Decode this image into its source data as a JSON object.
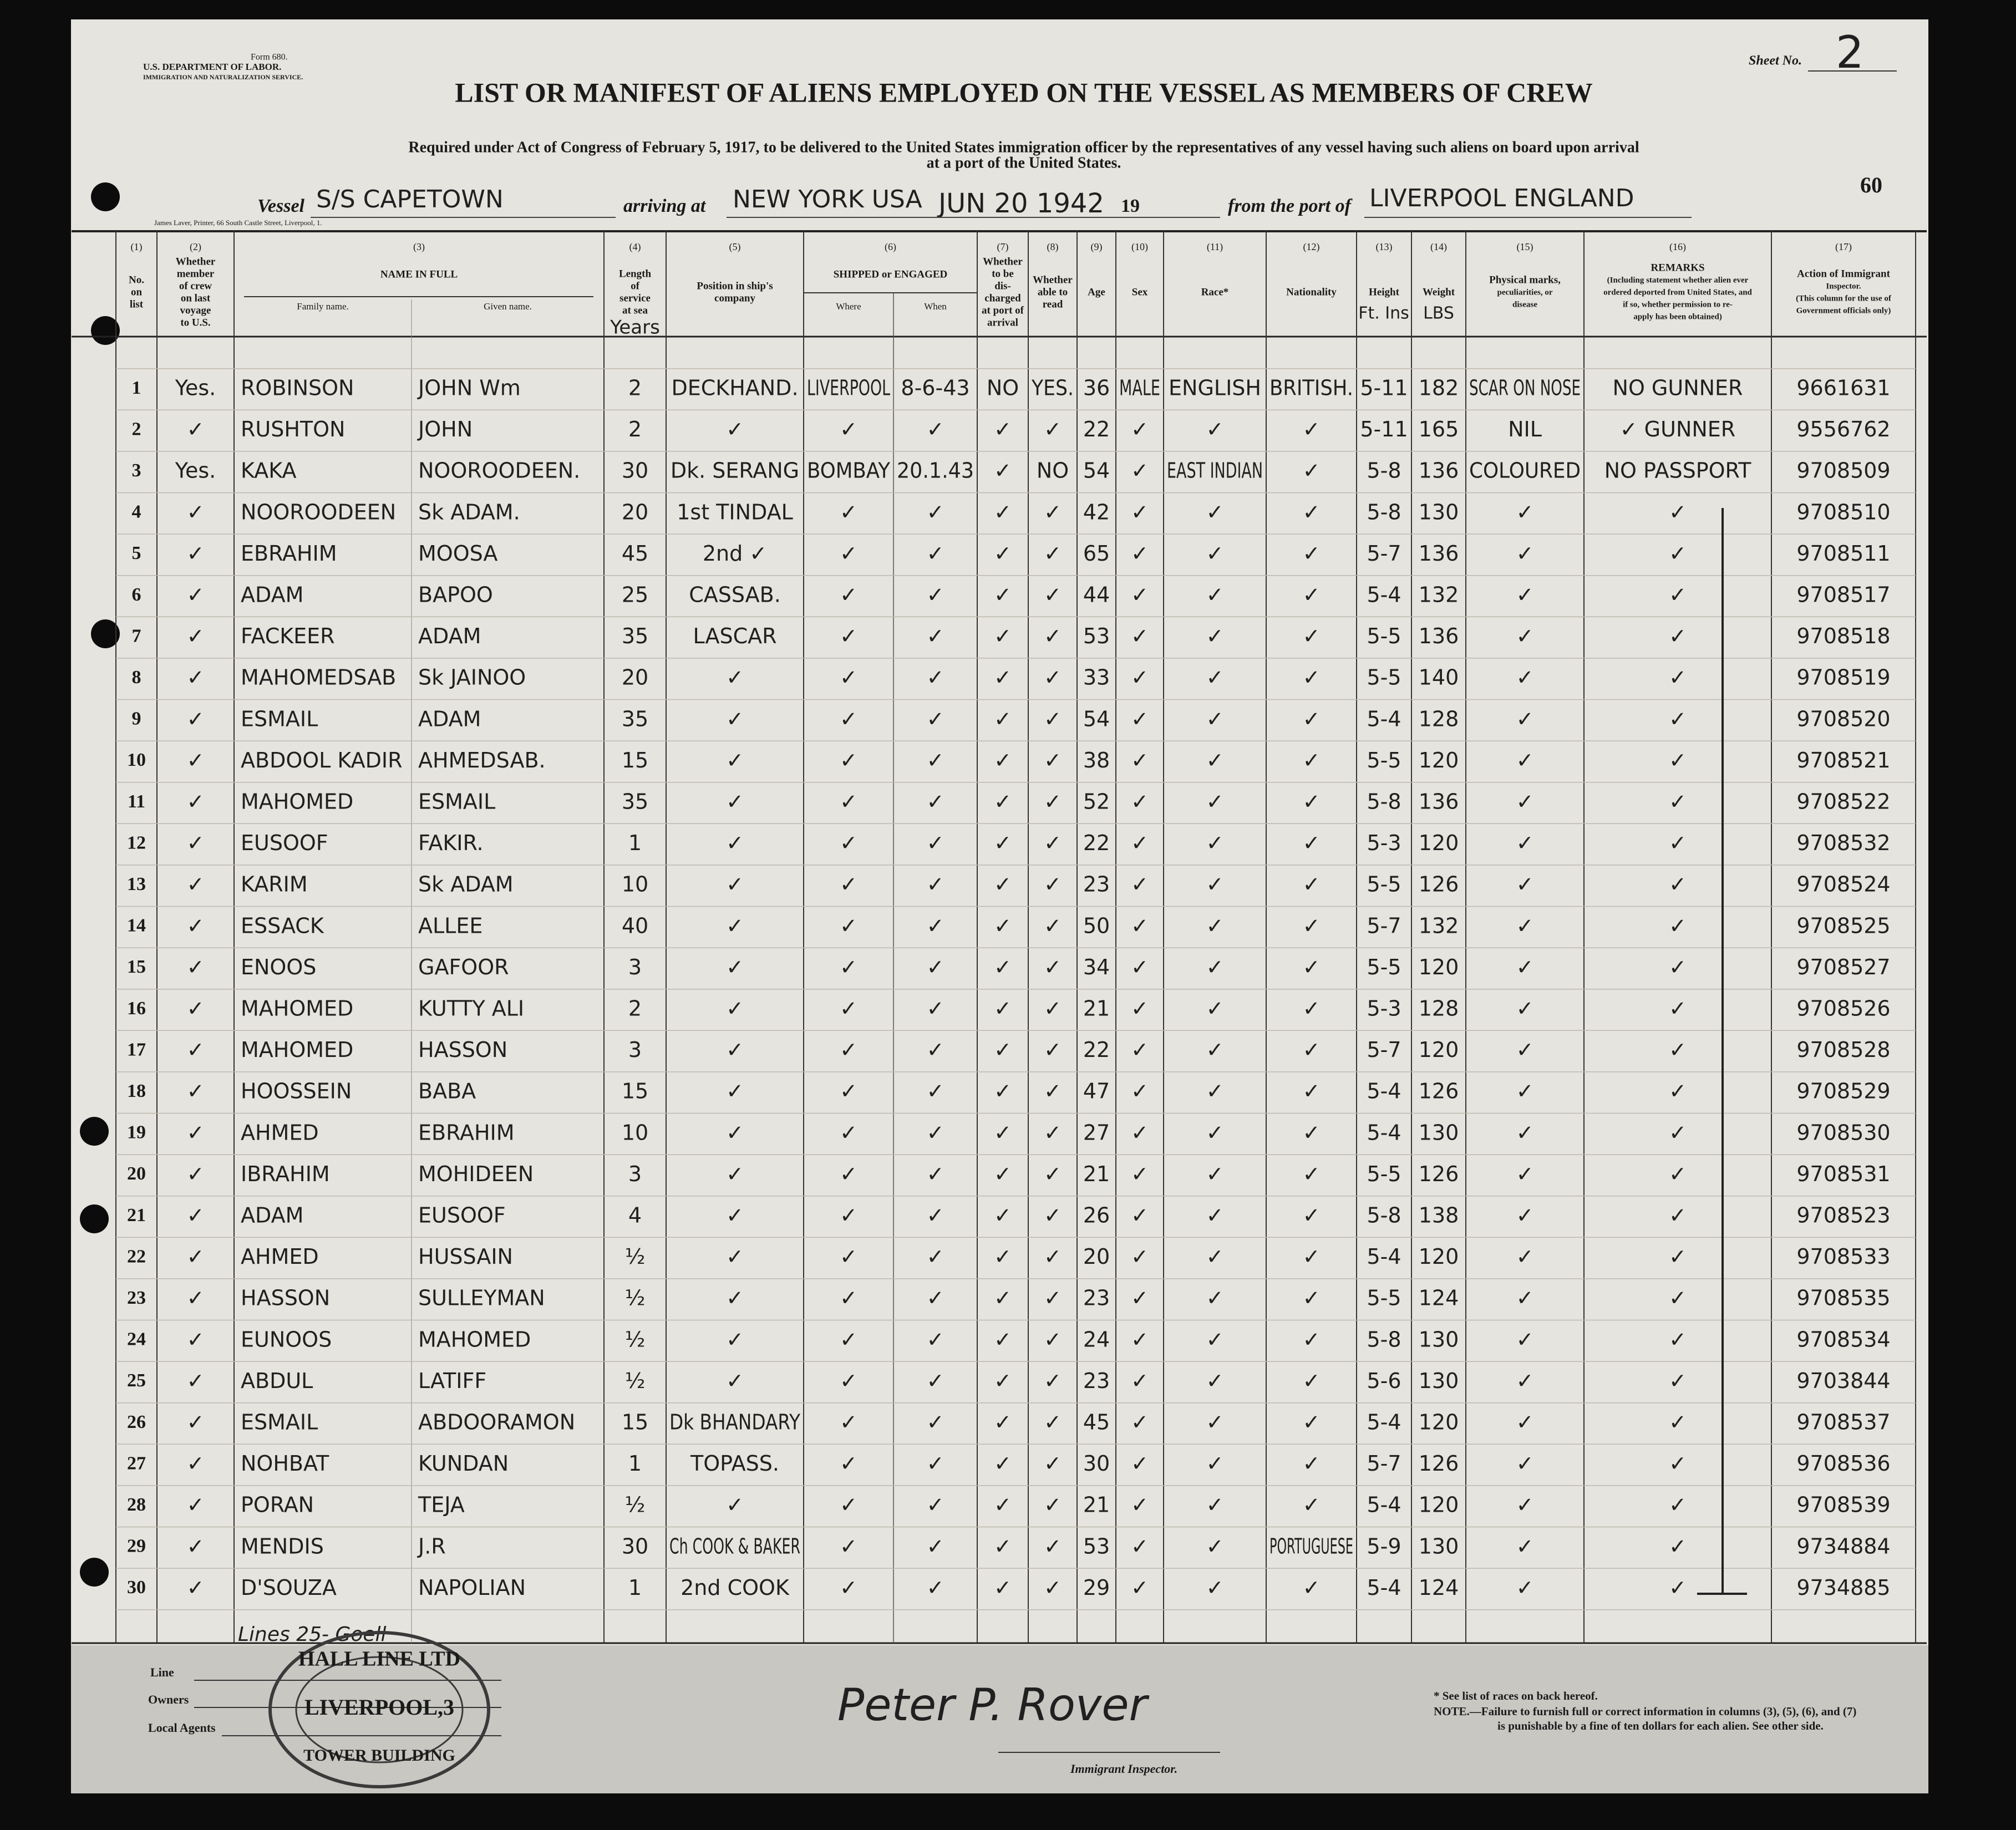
{
  "header": {
    "form": "Form 680.",
    "department": "U.S. DEPARTMENT OF LABOR.",
    "service": "IMMIGRATION AND NATURALIZATION SERVICE.",
    "sheet_label": "Sheet No.",
    "sheet_no": "2",
    "title": "LIST OR MANIFEST OF ALIENS EMPLOYED ON THE VESSEL AS MEMBERS OF CREW",
    "subtitle": [
      "Required under Act of Congress of February 5, 1917, to be delivered to the United States immigration officer by the representatives of any vessel having such aliens on board upon arrival",
      "at a port of the United States."
    ],
    "page_no": "60",
    "vessel_label": "Vessel",
    "vessel": "S/S CAPETOWN",
    "arriving_label": "arriving at",
    "arriving": "NEW YORK USA",
    "date": "JUN 20 1942",
    "year_label": "19",
    "port_label": "from the port of",
    "port": "LIVERPOOL ENGLAND",
    "printer": "James Laver, Printer, 66 South Castle Street, Liverpool, 1."
  },
  "columns": [
    {
      "number": "(1)",
      "lines": [
        "No.",
        "on",
        "list"
      ]
    },
    {
      "number": "(2)",
      "lines": [
        "Whether",
        "member",
        "of crew",
        "on last",
        "voyage",
        "to U.S."
      ]
    },
    {
      "number": "(3)",
      "lines": [
        "NAME IN FULL"
      ],
      "sub": [
        "Family name.",
        "Given name."
      ]
    },
    {
      "number": "(4)",
      "lines": [
        "Length",
        "of",
        "service",
        "at sea"
      ]
    },
    {
      "number": "(5)",
      "lines": [
        "Position in ship's",
        "company"
      ]
    },
    {
      "number": "(6)",
      "lines": [
        "SHIPPED or ENGAGED"
      ],
      "sub": [
        "Where",
        "When"
      ]
    },
    {
      "number": "(7)",
      "lines": [
        "Whether",
        "to be",
        "dis-",
        "charged",
        "at port of",
        "arrival"
      ]
    },
    {
      "number": "(8)",
      "lines": [
        "Whether",
        "able to",
        "read"
      ]
    },
    {
      "number": "(9)",
      "lines": [
        "Age"
      ]
    },
    {
      "number": "(10)",
      "lines": [
        "Sex"
      ]
    },
    {
      "number": "(11)",
      "lines": [
        "Race*"
      ]
    },
    {
      "number": "(12)",
      "lines": [
        "Nationality"
      ]
    },
    {
      "number": "(13)",
      "lines": [
        "Height"
      ]
    },
    {
      "number": "(14)",
      "lines": [
        "Weight"
      ]
    },
    {
      "number": "(15)",
      "lines": [
        "Physical marks,",
        "peculiarities, or",
        "disease"
      ]
    },
    {
      "number": "(16)",
      "lines": [
        "REMARKS",
        "(Including statement whether alien ever",
        "ordered deported from United States, and",
        "if so, whether permission to re-",
        "apply has been obtained)"
      ]
    },
    {
      "number": "(17)",
      "lines": [
        "Action of Immigrant",
        "Inspector.",
        "(This column for the use of",
        "Government officials only)"
      ]
    }
  ],
  "units": {
    "length": "Years",
    "height": "Ft. Ins",
    "weight": "LBS"
  },
  "rows": [
    [
      "1",
      "Yes.",
      "ROBINSON",
      "JOHN Wm",
      "2",
      "DECKHAND.",
      "LIVERPOOL",
      "8-6-43",
      "NO",
      "YES.",
      "36",
      "MALE",
      "ENGLISH",
      "BRITISH.",
      "5-11",
      "182",
      "SCAR ON NOSE",
      "NO GUNNER",
      "9661631"
    ],
    [
      "2",
      "✓",
      "RUSHTON",
      "JOHN",
      "2",
      "✓",
      "✓",
      "✓",
      "✓",
      "✓",
      "22",
      "✓",
      "✓",
      "✓",
      "5-11",
      "165",
      "NIL",
      "✓ GUNNER",
      "9556762"
    ],
    [
      "3",
      "Yes.",
      "KAKA",
      "NOOROODEEN.",
      "30",
      "Dk. SERANG",
      "BOMBAY",
      "20.1.43",
      "✓",
      "NO",
      "54",
      "✓",
      "EAST INDIAN",
      "✓",
      "5-8",
      "136",
      "COLOURED",
      "NO PASSPORT",
      "9708509"
    ],
    [
      "4",
      "✓",
      "NOOROODEEN",
      "Sk ADAM.",
      "20",
      "1st TINDAL",
      "✓",
      "✓",
      "✓",
      "✓",
      "42",
      "✓",
      "✓",
      "✓",
      "5-8",
      "130",
      "✓",
      "✓",
      "9708510"
    ],
    [
      "5",
      "✓",
      "EBRAHIM",
      "MOOSA",
      "45",
      "2nd ✓",
      "✓",
      "✓",
      "✓",
      "✓",
      "65",
      "✓",
      "✓",
      "✓",
      "5-7",
      "136",
      "✓",
      "✓",
      "9708511"
    ],
    [
      "6",
      "✓",
      "ADAM",
      "BAPOO",
      "25",
      "CASSAB.",
      "✓",
      "✓",
      "✓",
      "✓",
      "44",
      "✓",
      "✓",
      "✓",
      "5-4",
      "132",
      "✓",
      "✓",
      "9708517"
    ],
    [
      "7",
      "✓",
      "FACKEER",
      "ADAM",
      "35",
      "LASCAR",
      "✓",
      "✓",
      "✓",
      "✓",
      "53",
      "✓",
      "✓",
      "✓",
      "5-5",
      "136",
      "✓",
      "✓",
      "9708518"
    ],
    [
      "8",
      "✓",
      "MAHOMEDSAB",
      "Sk JAINOO",
      "20",
      "✓",
      "✓",
      "✓",
      "✓",
      "✓",
      "33",
      "✓",
      "✓",
      "✓",
      "5-5",
      "140",
      "✓",
      "✓",
      "9708519"
    ],
    [
      "9",
      "✓",
      "ESMAIL",
      "ADAM",
      "35",
      "✓",
      "✓",
      "✓",
      "✓",
      "✓",
      "54",
      "✓",
      "✓",
      "✓",
      "5-4",
      "128",
      "✓",
      "✓",
      "9708520"
    ],
    [
      "10",
      "✓",
      "ABDOOL KADIR",
      "AHMEDSAB.",
      "15",
      "✓",
      "✓",
      "✓",
      "✓",
      "✓",
      "38",
      "✓",
      "✓",
      "✓",
      "5-5",
      "120",
      "✓",
      "✓",
      "9708521"
    ],
    [
      "11",
      "✓",
      "MAHOMED",
      "ESMAIL",
      "35",
      "✓",
      "✓",
      "✓",
      "✓",
      "✓",
      "52",
      "✓",
      "✓",
      "✓",
      "5-8",
      "136",
      "✓",
      "✓",
      "9708522"
    ],
    [
      "12",
      "✓",
      "EUSOOF",
      "FAKIR.",
      "1",
      "✓",
      "✓",
      "✓",
      "✓",
      "✓",
      "22",
      "✓",
      "✓",
      "✓",
      "5-3",
      "120",
      "✓",
      "✓",
      "9708532"
    ],
    [
      "13",
      "✓",
      "KARIM",
      "Sk ADAM",
      "10",
      "✓",
      "✓",
      "✓",
      "✓",
      "✓",
      "23",
      "✓",
      "✓",
      "✓",
      "5-5",
      "126",
      "✓",
      "✓",
      "9708524"
    ],
    [
      "14",
      "✓",
      "ESSACK",
      "ALLEE",
      "40",
      "✓",
      "✓",
      "✓",
      "✓",
      "✓",
      "50",
      "✓",
      "✓",
      "✓",
      "5-7",
      "132",
      "✓",
      "✓",
      "9708525"
    ],
    [
      "15",
      "✓",
      "ENOOS",
      "GAFOOR",
      "3",
      "✓",
      "✓",
      "✓",
      "✓",
      "✓",
      "34",
      "✓",
      "✓",
      "✓",
      "5-5",
      "120",
      "✓",
      "✓",
      "9708527"
    ],
    [
      "16",
      "✓",
      "MAHOMED",
      "KUTTY ALI",
      "2",
      "✓",
      "✓",
      "✓",
      "✓",
      "✓",
      "21",
      "✓",
      "✓",
      "✓",
      "5-3",
      "128",
      "✓",
      "✓",
      "9708526"
    ],
    [
      "17",
      "✓",
      "MAHOMED",
      "HASSON",
      "3",
      "✓",
      "✓",
      "✓",
      "✓",
      "✓",
      "22",
      "✓",
      "✓",
      "✓",
      "5-7",
      "120",
      "✓",
      "✓",
      "9708528"
    ],
    [
      "18",
      "✓",
      "HOOSSEIN",
      "BABA",
      "15",
      "✓",
      "✓",
      "✓",
      "✓",
      "✓",
      "47",
      "✓",
      "✓",
      "✓",
      "5-4",
      "126",
      "✓",
      "✓",
      "9708529"
    ],
    [
      "19",
      "✓",
      "AHMED",
      "EBRAHIM",
      "10",
      "✓",
      "✓",
      "✓",
      "✓",
      "✓",
      "27",
      "✓",
      "✓",
      "✓",
      "5-4",
      "130",
      "✓",
      "✓",
      "9708530"
    ],
    [
      "20",
      "✓",
      "IBRAHIM",
      "MOHIDEEN",
      "3",
      "✓",
      "✓",
      "✓",
      "✓",
      "✓",
      "21",
      "✓",
      "✓",
      "✓",
      "5-5",
      "126",
      "✓",
      "✓",
      "9708531"
    ],
    [
      "21",
      "✓",
      "ADAM",
      "EUSOOF",
      "4",
      "✓",
      "✓",
      "✓",
      "✓",
      "✓",
      "26",
      "✓",
      "✓",
      "✓",
      "5-8",
      "138",
      "✓",
      "✓",
      "9708523"
    ],
    [
      "22",
      "✓",
      "AHMED",
      "HUSSAIN",
      "½",
      "✓",
      "✓",
      "✓",
      "✓",
      "✓",
      "20",
      "✓",
      "✓",
      "✓",
      "5-4",
      "120",
      "✓",
      "✓",
      "9708533"
    ],
    [
      "23",
      "✓",
      "HASSON",
      "SULLEYMAN",
      "½",
      "✓",
      "✓",
      "✓",
      "✓",
      "✓",
      "23",
      "✓",
      "✓",
      "✓",
      "5-5",
      "124",
      "✓",
      "✓",
      "9708535"
    ],
    [
      "24",
      "✓",
      "EUNOOS",
      "MAHOMED",
      "½",
      "✓",
      "✓",
      "✓",
      "✓",
      "✓",
      "24",
      "✓",
      "✓",
      "✓",
      "5-8",
      "130",
      "✓",
      "✓",
      "9708534"
    ],
    [
      "25",
      "✓",
      "ABDUL",
      "LATIFF",
      "½",
      "✓",
      "✓",
      "✓",
      "✓",
      "✓",
      "23",
      "✓",
      "✓",
      "✓",
      "5-6",
      "130",
      "✓",
      "✓",
      "9703844"
    ],
    [
      "26",
      "✓",
      "ESMAIL",
      "ABDOORAMON",
      "15",
      "Dk BHANDARY",
      "✓",
      "✓",
      "✓",
      "✓",
      "45",
      "✓",
      "✓",
      "✓",
      "5-4",
      "120",
      "✓",
      "✓",
      "9708537"
    ],
    [
      "27",
      "✓",
      "NOHBAT",
      "KUNDAN",
      "1",
      "TOPASS.",
      "✓",
      "✓",
      "✓",
      "✓",
      "30",
      "✓",
      "✓",
      "✓",
      "5-7",
      "126",
      "✓",
      "✓",
      "9708536"
    ],
    [
      "28",
      "✓",
      "PORAN",
      "TEJA",
      "½",
      "✓",
      "✓",
      "✓",
      "✓",
      "✓",
      "21",
      "✓",
      "✓",
      "✓",
      "5-4",
      "120",
      "✓",
      "✓",
      "9708539"
    ],
    [
      "29",
      "✓",
      "MENDIS",
      "J.R",
      "30",
      "Ch COOK & BAKER",
      "✓",
      "✓",
      "✓",
      "✓",
      "53",
      "✓",
      "✓",
      "PORTUGUESE",
      "5-9",
      "130",
      "✓",
      "✓",
      "9734884"
    ],
    [
      "30",
      "✓",
      "D'SOUZA",
      "NAPOLIAN",
      "1",
      "2nd COOK",
      "✓",
      "✓",
      "✓",
      "✓",
      "29",
      "✓",
      "✓",
      "✓",
      "5-4",
      "124",
      "✓",
      "✓",
      "9734885"
    ]
  ],
  "footer": {
    "lines_note": "Lines 25- Goell",
    "line_label": "Line",
    "owners_label": "Owners",
    "agents_label": "Local Agents",
    "stamp": [
      "HALL LINE LTD",
      "LIVERPOOL,3",
      "TOWER BUILDING"
    ],
    "signature": "Peter P. Rover",
    "inspector_label": "Immigrant Inspector.",
    "races_note": "* See list of races on back hereof.",
    "note": [
      "NOTE.—Failure to furnish full or correct information in columns (3), (5), (6), and (7)",
      "is punishable by a fine of ten dollars for each alien. See other side."
    ]
  }
}
